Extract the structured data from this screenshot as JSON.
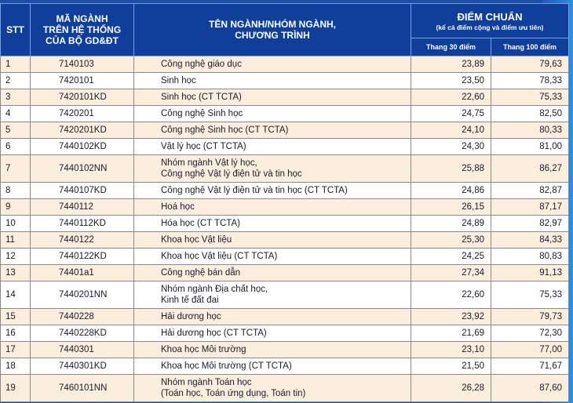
{
  "header": {
    "stt": "STT",
    "code_line1": "MÃ NGÀNH",
    "code_line2": "TRÊN HỆ THỐNG",
    "code_line3": "CỦA BỘ GD&ĐT",
    "name_line1": "TÊN NGÀNH/NHÓM NGÀNH,",
    "name_line2": "CHƯƠNG TRÌNH",
    "score_title": "ĐIỂM CHUẨN",
    "score_subtitle": "(kể cả điểm cộng và điểm ưu tiên)",
    "scale30": "Thang 30 điểm",
    "scale100": "Thang 100 điểm"
  },
  "rows": [
    {
      "stt": "1",
      "code": "7140103",
      "name1": "Công nghệ giáo dục",
      "name2": "",
      "s30": "23,89",
      "s100": "79,63"
    },
    {
      "stt": "2",
      "code": "7420101",
      "name1": "Sinh học",
      "name2": "",
      "s30": "23,50",
      "s100": "78,33"
    },
    {
      "stt": "3",
      "code": "7420101KD",
      "name1": "Sinh học (CT TCTA)",
      "name2": "",
      "s30": "22,60",
      "s100": "75,33"
    },
    {
      "stt": "4",
      "code": "7420201",
      "name1": "Công nghệ Sinh học",
      "name2": "",
      "s30": "24,75",
      "s100": "82,50"
    },
    {
      "stt": "5",
      "code": "7420201KD",
      "name1": "Công nghệ Sinh học (CT TCTA)",
      "name2": "",
      "s30": "24,10",
      "s100": "80,33"
    },
    {
      "stt": "6",
      "code": "7440102KD",
      "name1": "Vật lý học (CT TCTA)",
      "name2": "",
      "s30": "24,30",
      "s100": "81,00"
    },
    {
      "stt": "7",
      "code": "7440102NN",
      "name1": "Nhóm ngành Vật lý học,",
      "name2": "Công nghệ Vật lý điện tử và tin học",
      "s30": "25,88",
      "s100": "86,27"
    },
    {
      "stt": "8",
      "code": "7440107KD",
      "name1": "Công nghệ Vật lý điện tử và tin học (CT TCTA)",
      "name2": "",
      "s30": "24,86",
      "s100": "82,87"
    },
    {
      "stt": "9",
      "code": "7440112",
      "name1": "Hoá học",
      "name2": "",
      "s30": "26,15",
      "s100": "87,17"
    },
    {
      "stt": "10",
      "code": "7440112KD",
      "name1": "Hóa học (CT TCTA)",
      "name2": "",
      "s30": "24,89",
      "s100": "82,97"
    },
    {
      "stt": "11",
      "code": "7440122",
      "name1": "Khoa học Vật liệu",
      "name2": "",
      "s30": "25,30",
      "s100": "84,33"
    },
    {
      "stt": "12",
      "code": "7440122KD",
      "name1": "Khoa học Vật liệu (CT TCTA)",
      "name2": "",
      "s30": "24,25",
      "s100": "80,83"
    },
    {
      "stt": "13",
      "code": "74401a1",
      "name1": "Công nghệ bán dẫn",
      "name2": "",
      "s30": "27,34",
      "s100": "91,13"
    },
    {
      "stt": "14",
      "code": "7440201NN",
      "name1": "Nhóm ngành Địa chất học,",
      "name2": "Kinh tế đất đai",
      "s30": "22,60",
      "s100": "75,33"
    },
    {
      "stt": "15",
      "code": "7440228",
      "name1": "Hải dương học",
      "name2": "",
      "s30": "23,92",
      "s100": "79,73"
    },
    {
      "stt": "16",
      "code": "7440228KD",
      "name1": "Hải dương học (CT TCTA)",
      "name2": "",
      "s30": "21,69",
      "s100": "72,30"
    },
    {
      "stt": "17",
      "code": "7440301",
      "name1": "Khoa học Môi trường",
      "name2": "",
      "s30": "23,10",
      "s100": "77,00"
    },
    {
      "stt": "18",
      "code": "7440301KD",
      "name1": "Khoa học Môi trường (CT TCTA)",
      "name2": "",
      "s30": "21,50",
      "s100": "71,67"
    },
    {
      "stt": "19",
      "code": "7460101NN",
      "name1": "Nhóm ngành Toán học",
      "name2": "(Toán học, Toán ứng dụng, Toán tin)",
      "s30": "26,28",
      "s100": "87,60"
    }
  ]
}
